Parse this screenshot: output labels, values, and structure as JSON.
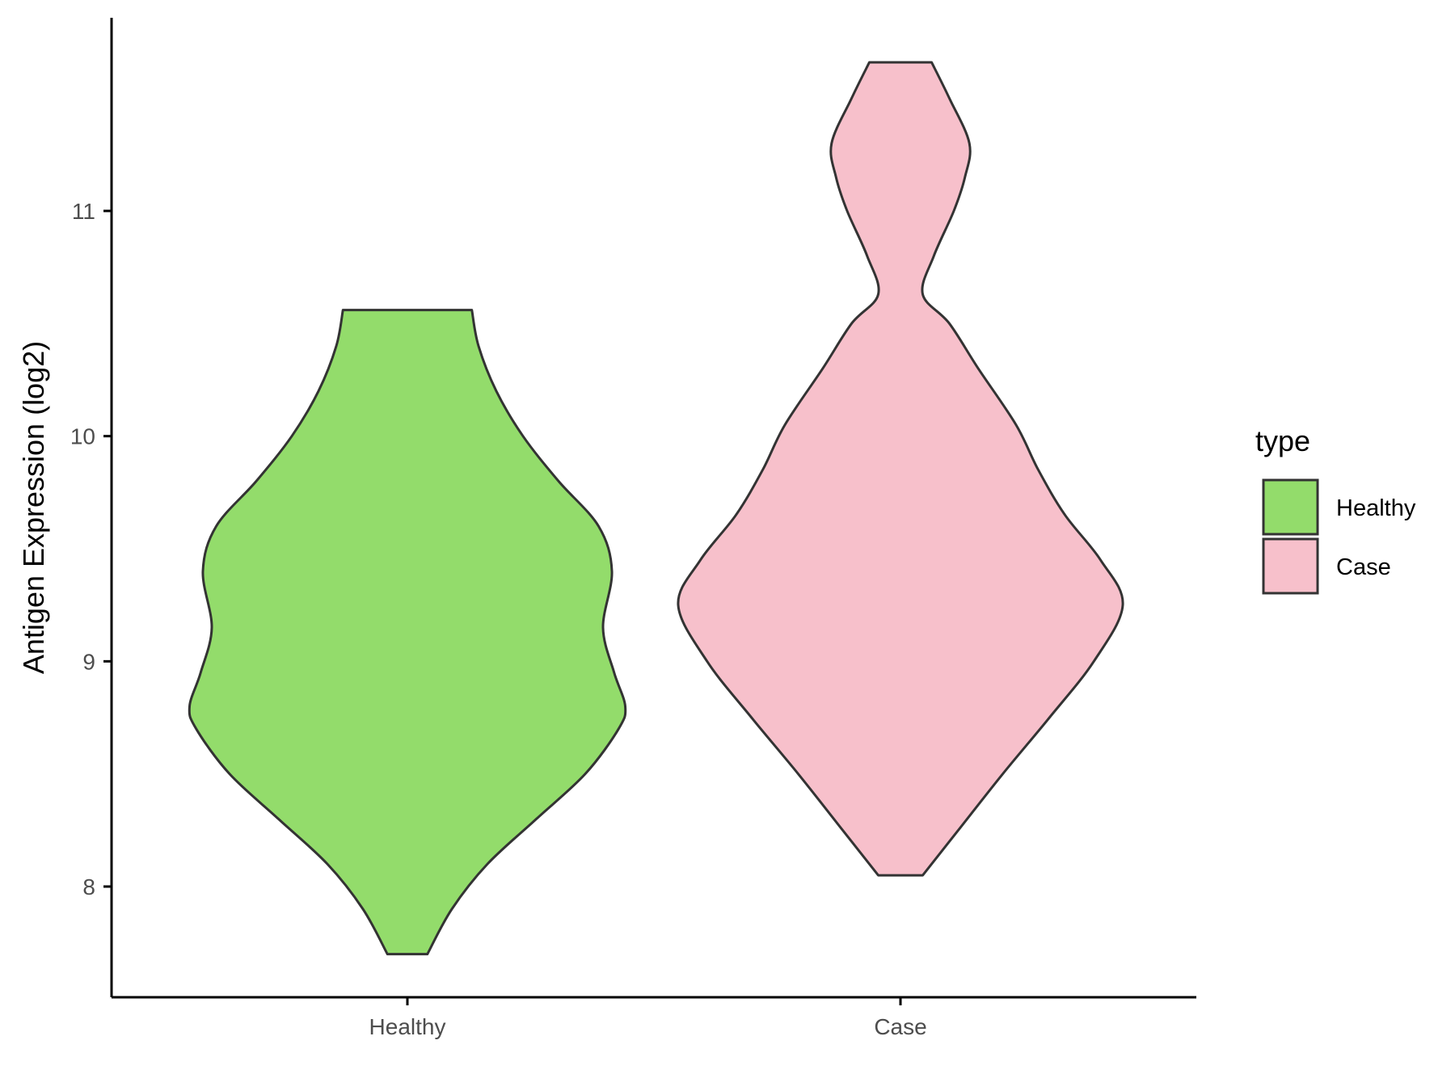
{
  "chart_data": {
    "type": "violin",
    "title": "",
    "xlabel": "",
    "ylabel": "Antigen Expression (log2)",
    "ylim": [
      7.53,
      11.87
    ],
    "yticks": [
      8,
      9,
      10,
      11
    ],
    "categories": [
      "Healthy",
      "Case"
    ],
    "legend": {
      "title": "type",
      "position": "right",
      "entries": [
        {
          "label": "Healthy",
          "color": "#93dc6b"
        },
        {
          "label": "Case",
          "color": "#f7c0cb"
        }
      ]
    },
    "grid": false,
    "series": [
      {
        "name": "Healthy",
        "color": "#93dc6b",
        "min": 7.7,
        "max": 10.56,
        "density_profile": [
          {
            "y": 7.7,
            "w": 0.09
          },
          {
            "y": 7.9,
            "w": 0.2
          },
          {
            "y": 8.1,
            "w": 0.36
          },
          {
            "y": 8.3,
            "w": 0.58
          },
          {
            "y": 8.5,
            "w": 0.8
          },
          {
            "y": 8.7,
            "w": 0.95
          },
          {
            "y": 8.8,
            "w": 0.98
          },
          {
            "y": 8.95,
            "w": 0.93
          },
          {
            "y": 9.15,
            "w": 0.88
          },
          {
            "y": 9.4,
            "w": 0.92
          },
          {
            "y": 9.6,
            "w": 0.86
          },
          {
            "y": 9.8,
            "w": 0.68
          },
          {
            "y": 10.0,
            "w": 0.52
          },
          {
            "y": 10.2,
            "w": 0.4
          },
          {
            "y": 10.4,
            "w": 0.32
          },
          {
            "y": 10.56,
            "w": 0.29
          }
        ]
      },
      {
        "name": "Case",
        "color": "#f7c0cb",
        "min": 8.05,
        "max": 11.66,
        "density_profile": [
          {
            "y": 8.05,
            "w": 0.1
          },
          {
            "y": 8.25,
            "w": 0.26
          },
          {
            "y": 8.5,
            "w": 0.46
          },
          {
            "y": 8.75,
            "w": 0.67
          },
          {
            "y": 9.0,
            "w": 0.87
          },
          {
            "y": 9.25,
            "w": 1.0
          },
          {
            "y": 9.45,
            "w": 0.9
          },
          {
            "y": 9.65,
            "w": 0.74
          },
          {
            "y": 9.85,
            "w": 0.62
          },
          {
            "y": 10.05,
            "w": 0.52
          },
          {
            "y": 10.3,
            "w": 0.35
          },
          {
            "y": 10.5,
            "w": 0.22
          },
          {
            "y": 10.63,
            "w": 0.1
          },
          {
            "y": 10.8,
            "w": 0.15
          },
          {
            "y": 11.0,
            "w": 0.24
          },
          {
            "y": 11.15,
            "w": 0.29
          },
          {
            "y": 11.3,
            "w": 0.31
          },
          {
            "y": 11.5,
            "w": 0.22
          },
          {
            "y": 11.66,
            "w": 0.14
          }
        ]
      }
    ]
  }
}
